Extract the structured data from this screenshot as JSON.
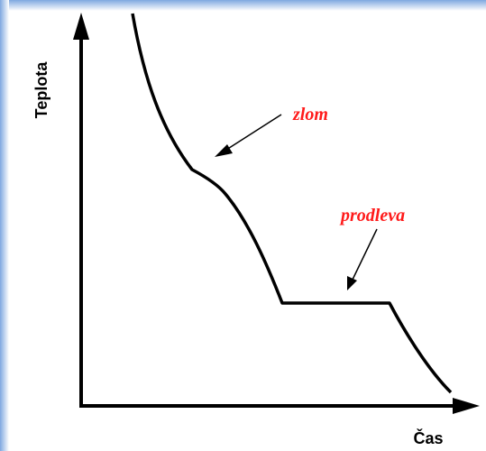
{
  "axes": {
    "y_label": "Teplota",
    "x_label": "Čas"
  },
  "annotations": [
    {
      "label": "zlom"
    },
    {
      "label": "prodleva"
    }
  ]
}
